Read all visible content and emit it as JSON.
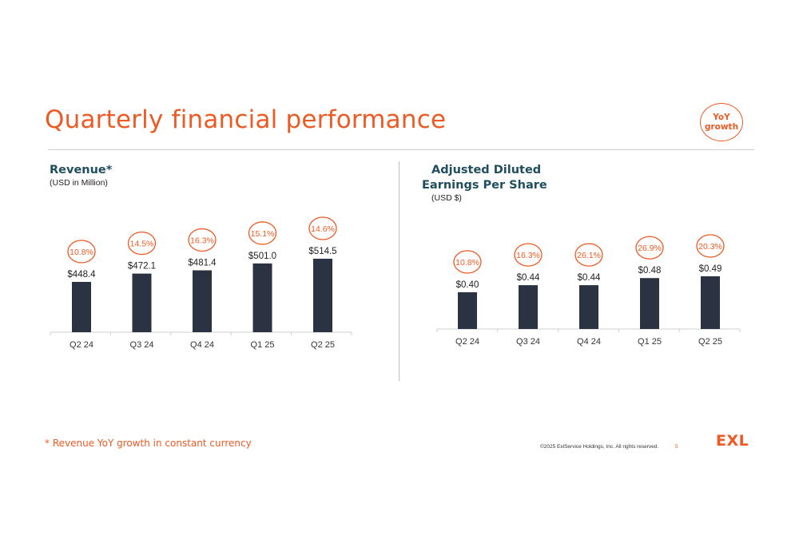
{
  "page": {
    "title": "Quarterly financial performance",
    "legend_badge": {
      "line1": "YoY",
      "line2": "growth"
    },
    "footnote": "* Revenue YoY growth in constant currency",
    "copyright": "©2025 ExlService Holdings, Inc. All rights reserved.",
    "page_number": "5",
    "logo": "EXL"
  },
  "colors": {
    "bar": "#2b3241",
    "accent": "#ee5a24",
    "heading": "#1f4e5f",
    "axis": "#cfcfcf"
  },
  "chart_data": [
    {
      "type": "bar",
      "title": "Revenue*",
      "subtitle": "(USD in Million)",
      "categories": [
        "Q2 24",
        "Q3 24",
        "Q4 24",
        "Q1 25",
        "Q2 25"
      ],
      "values": [
        448.4,
        472.1,
        481.4,
        501.0,
        514.5
      ],
      "value_labels": [
        "$448.4",
        "$472.1",
        "$481.4",
        "$501.0",
        "$514.5"
      ],
      "growth_labels": [
        "10.8%",
        "14.5%",
        "16.3%",
        "15.1%",
        "14.6%"
      ],
      "ylim": [
        0,
        514.5
      ],
      "grid": false,
      "legend": "top-right"
    },
    {
      "type": "bar",
      "title_lines": [
        "Adjusted Diluted",
        "Earnings Per Share"
      ],
      "subtitle": "(USD $)",
      "categories": [
        "Q2 24",
        "Q3 24",
        "Q4 24",
        "Q1 25",
        "Q2 25"
      ],
      "values": [
        0.4,
        0.44,
        0.44,
        0.48,
        0.49
      ],
      "value_labels": [
        "$0.40",
        "$0.44",
        "$0.44",
        "$0.48",
        "$0.49"
      ],
      "growth_labels": [
        "10.8%",
        "16.3%",
        "26.1%",
        "26.9%",
        "20.3%"
      ],
      "ylim": [
        0,
        0.49
      ],
      "grid": false,
      "legend": "top-right"
    }
  ]
}
